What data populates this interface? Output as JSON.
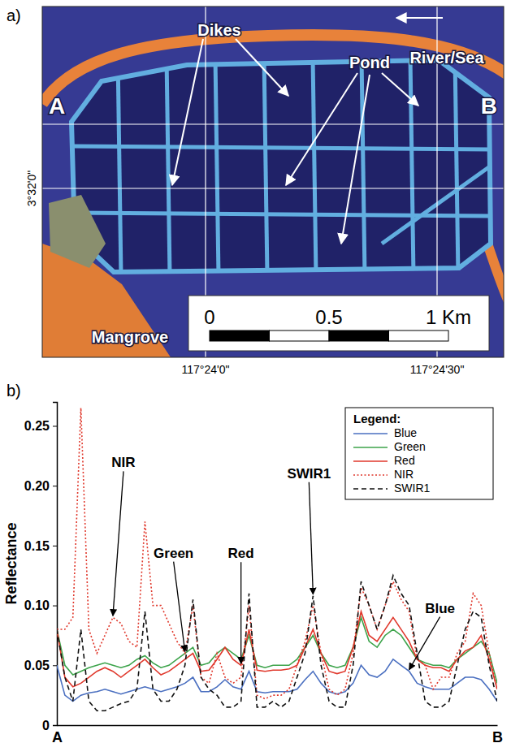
{
  "chart_data": {
    "type": "line",
    "panel_label": "b)",
    "y_label": "Reflectance",
    "categories": [
      "A",
      null,
      null,
      null,
      null,
      null,
      null,
      null,
      null,
      null,
      null,
      null,
      null,
      null,
      null,
      null,
      null,
      null,
      null,
      null,
      null,
      null,
      null,
      null,
      null,
      null,
      null,
      null,
      null,
      null,
      null,
      null,
      null,
      null,
      null,
      null,
      null,
      null,
      null,
      null,
      null,
      null,
      null,
      null,
      null,
      null,
      null,
      null,
      null,
      null,
      null,
      null,
      null,
      null,
      null,
      "B"
    ],
    "series": [
      {
        "name": "Blue",
        "color": "#4a6fc0",
        "line_style": "solid",
        "values": [
          0.05,
          0.025,
          0.02,
          0.025,
          0.027,
          0.028,
          0.03,
          0.028,
          0.026,
          0.028,
          0.03,
          0.032,
          0.03,
          0.028,
          0.03,
          0.032,
          0.035,
          0.04,
          0.028,
          0.028,
          0.032,
          0.038,
          0.032,
          0.03,
          0.045,
          0.028,
          0.027,
          0.028,
          0.028,
          0.028,
          0.03,
          0.038,
          0.045,
          0.035,
          0.028,
          0.026,
          0.028,
          0.035,
          0.05,
          0.042,
          0.04,
          0.045,
          0.055,
          0.05,
          0.045,
          0.035,
          0.032,
          0.03,
          0.03,
          0.03,
          0.035,
          0.04,
          0.04,
          0.038,
          0.03,
          0.02
        ]
      },
      {
        "name": "Green",
        "color": "#3ca34a",
        "line_style": "solid",
        "values": [
          0.08,
          0.05,
          0.042,
          0.045,
          0.048,
          0.05,
          0.052,
          0.05,
          0.048,
          0.05,
          0.055,
          0.058,
          0.052,
          0.048,
          0.05,
          0.055,
          0.06,
          0.065,
          0.05,
          0.052,
          0.06,
          0.065,
          0.06,
          0.055,
          0.075,
          0.05,
          0.048,
          0.05,
          0.05,
          0.05,
          0.055,
          0.065,
          0.075,
          0.06,
          0.05,
          0.048,
          0.05,
          0.065,
          0.09,
          0.07,
          0.065,
          0.075,
          0.08,
          0.075,
          0.065,
          0.055,
          0.052,
          0.05,
          0.05,
          0.048,
          0.055,
          0.06,
          0.065,
          0.07,
          0.06,
          0.035
        ]
      },
      {
        "name": "Red",
        "color": "#e0382c",
        "line_style": "solid",
        "values": [
          0.08,
          0.04,
          0.032,
          0.035,
          0.04,
          0.045,
          0.048,
          0.045,
          0.04,
          0.045,
          0.05,
          0.055,
          0.048,
          0.042,
          0.045,
          0.05,
          0.055,
          0.06,
          0.045,
          0.046,
          0.055,
          0.065,
          0.055,
          0.05,
          0.08,
          0.046,
          0.045,
          0.046,
          0.046,
          0.047,
          0.05,
          0.065,
          0.08,
          0.06,
          0.045,
          0.043,
          0.045,
          0.065,
          0.095,
          0.075,
          0.07,
          0.08,
          0.09,
          0.08,
          0.07,
          0.055,
          0.05,
          0.048,
          0.048,
          0.045,
          0.055,
          0.062,
          0.065,
          0.075,
          0.055,
          0.03
        ]
      },
      {
        "name": "NIR",
        "color": "#e0382c",
        "line_style": "dotted",
        "values": [
          0.08,
          0.08,
          0.09,
          0.265,
          0.08,
          0.06,
          0.075,
          0.09,
          0.085,
          0.07,
          0.065,
          0.17,
          0.1,
          0.1,
          0.085,
          0.07,
          0.06,
          0.1,
          0.04,
          0.035,
          0.06,
          0.04,
          0.035,
          0.04,
          0.1,
          0.025,
          0.022,
          0.025,
          0.025,
          0.03,
          0.05,
          0.07,
          0.1,
          0.06,
          0.03,
          0.025,
          0.03,
          0.06,
          0.115,
          0.1,
          0.08,
          0.1,
          0.12,
          0.105,
          0.095,
          0.055,
          0.05,
          0.03,
          0.04,
          0.04,
          0.06,
          0.07,
          0.11,
          0.1,
          0.06,
          0.03
        ]
      },
      {
        "name": "SWIR1",
        "color": "#111111",
        "line_style": "dashed",
        "values": [
          0.08,
          0.04,
          0.02,
          0.08,
          0.02,
          0.012,
          0.012,
          0.015,
          0.018,
          0.02,
          0.03,
          0.095,
          0.03,
          0.02,
          0.02,
          0.03,
          0.05,
          0.105,
          0.04,
          0.03,
          0.025,
          0.015,
          0.015,
          0.02,
          0.11,
          0.015,
          0.015,
          0.02,
          0.015,
          0.02,
          0.04,
          0.06,
          0.108,
          0.05,
          0.02,
          0.015,
          0.015,
          0.05,
          0.12,
          0.1,
          0.08,
          0.1,
          0.125,
          0.11,
          0.1,
          0.06,
          0.02,
          0.015,
          0.015,
          0.02,
          0.05,
          0.08,
          0.095,
          0.09,
          0.05,
          0.02
        ]
      }
    ],
    "ylim": [
      0,
      0.27
    ],
    "yticks": [
      0,
      0.05,
      {
        "value": 0.1,
        "label": "0.10"
      },
      0.15,
      {
        "value": 0.2,
        "label": "0.20"
      },
      0.25
    ],
    "grid": false,
    "legend": "upper right",
    "legend_title": "Legend:",
    "annotations": [
      {
        "text": "NIR",
        "x": 7,
        "y": 0.09
      },
      {
        "text": "Green",
        "x": 16,
        "y": 0.06
      },
      {
        "text": "Red",
        "x": 23,
        "y": 0.05
      },
      {
        "text": "SWIR1",
        "x": 32,
        "y": 0.108
      },
      {
        "text": "Blue",
        "x": 44,
        "y": 0.045
      }
    ]
  },
  "map": {
    "panel_label": "a)",
    "labels": {
      "dikes": "Dikes",
      "pond": "Pond",
      "river_sea": "River/Sea",
      "mangrove": "Mangrove"
    },
    "section": [
      "A",
      "B"
    ],
    "latitude_labels": [
      "3°32'0\""
    ],
    "longitude_labels": [
      "117°24'0\"",
      "117°24'30\""
    ],
    "scale_bar": {
      "ticks": [
        0,
        0.5,
        {
          "value": 1,
          "label": "1 Km"
        }
      ]
    }
  }
}
